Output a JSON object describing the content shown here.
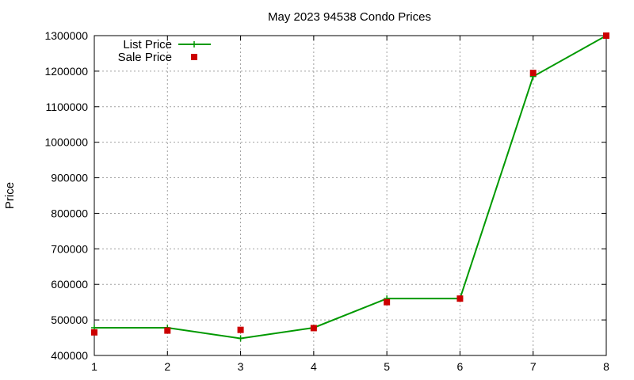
{
  "chart_data": {
    "type": "line",
    "title": "May 2023 94538 Condo Prices",
    "xlabel": "",
    "ylabel": "Price",
    "xlim": [
      1,
      8
    ],
    "ylim": [
      400000,
      1300000
    ],
    "x_ticks": [
      1,
      2,
      3,
      4,
      5,
      6,
      7,
      8
    ],
    "y_ticks": [
      400000,
      500000,
      600000,
      700000,
      800000,
      900000,
      1000000,
      1100000,
      1200000,
      1300000
    ],
    "grid": true,
    "legend_position": "top-left",
    "series": [
      {
        "name": "List Price",
        "style": "lines+points",
        "marker": "plus",
        "color": "#009900",
        "x": [
          1,
          2,
          3,
          4,
          5,
          6,
          7,
          8
        ],
        "y": [
          478000,
          478000,
          448000,
          478000,
          560000,
          560000,
          1185000,
          1300000
        ]
      },
      {
        "name": "Sale Price",
        "style": "points",
        "marker": "square",
        "color": "#cc0000",
        "x": [
          1,
          2,
          3,
          4,
          5,
          6,
          7,
          8
        ],
        "y": [
          465000,
          470000,
          472000,
          477000,
          550000,
          560000,
          1195000,
          1300000
        ]
      }
    ]
  }
}
